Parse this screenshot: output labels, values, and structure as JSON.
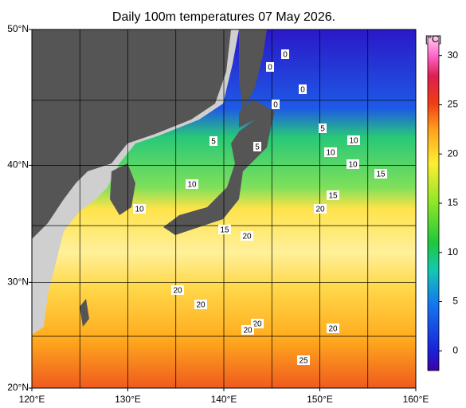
{
  "map": {
    "title": "Daily 100m temperatures 07 May 2026.",
    "lon_ticks": [
      {
        "value": 120,
        "label": "120°E"
      },
      {
        "value": 130,
        "label": "130°E"
      },
      {
        "value": 140,
        "label": "140°E"
      },
      {
        "value": 150,
        "label": "150°E"
      },
      {
        "value": 160,
        "label": "160°E"
      }
    ],
    "lat_ticks": [
      {
        "value": 20,
        "label": "20°N"
      },
      {
        "value": 30,
        "label": "30°N"
      },
      {
        "value": 40,
        "label": "40°N"
      },
      {
        "value": 50,
        "label": "50°N"
      }
    ],
    "lon_grid": [
      125,
      130,
      135,
      140,
      145,
      150,
      155
    ],
    "lat_grid": [
      25,
      30,
      35,
      40,
      45
    ],
    "colorbar": {
      "label": "[°C]",
      "range": [
        -2,
        32
      ],
      "ticks": [
        0,
        5,
        10,
        15,
        20,
        25,
        30
      ]
    },
    "contour_labels": [
      0,
      0,
      0,
      0,
      5,
      5,
      5,
      10,
      10,
      10,
      10,
      10,
      15,
      15,
      20,
      15,
      20,
      20,
      20,
      20,
      20,
      20,
      25
    ]
  }
}
